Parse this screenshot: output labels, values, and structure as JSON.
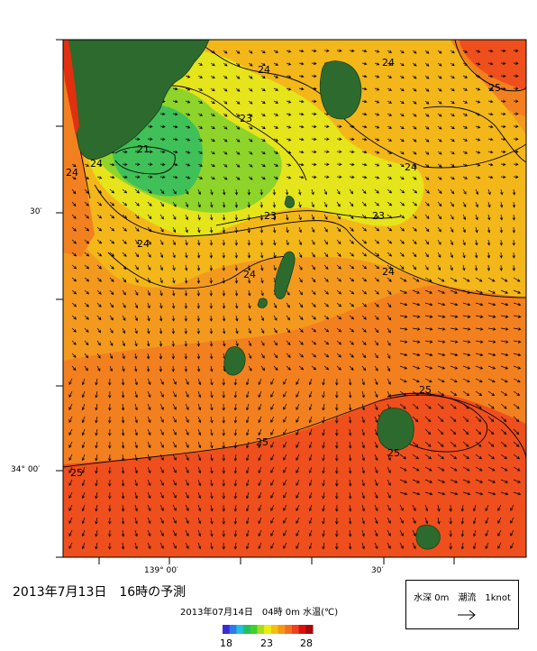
{
  "map": {
    "lat_labels": [
      "30′",
      "34° 00′"
    ],
    "lon_labels": [
      "139° 00′",
      "30′"
    ],
    "contour_labels": [
      "21",
      "23",
      "23",
      "23",
      "24",
      "24",
      "24",
      "24",
      "24",
      "24",
      "24",
      "24",
      "25",
      "25",
      "25",
      "25",
      "25"
    ]
  },
  "forecast_title": "2013年7月13日　16時の予測",
  "valid_time": "2013年07月14日　04時 0m 水温(℃)",
  "colorbar": {
    "min_label": "18",
    "mid_label": "23",
    "max_label": "28",
    "colors": [
      "#3a2bd6",
      "#2a7af0",
      "#25c0d8",
      "#20c060",
      "#40d02a",
      "#a8dc20",
      "#ecec10",
      "#f2c010",
      "#f39a10",
      "#f37020",
      "#f04020",
      "#d81010",
      "#a80808"
    ]
  },
  "scale": {
    "caption": "水深 0m　潮流　1knot"
  },
  "colors": {
    "land": "#2d6a2d",
    "land_outline": "#1b421b",
    "sst_21": "#40c058",
    "sst_22": "#8ed42a",
    "sst_23": "#e6e41a",
    "sst_24": "#f3b71a",
    "sst_25": "#f39a1e",
    "sst_26": "#f3801e",
    "sst_27": "#ef4f1c",
    "mainland_edge": "#e03010"
  }
}
